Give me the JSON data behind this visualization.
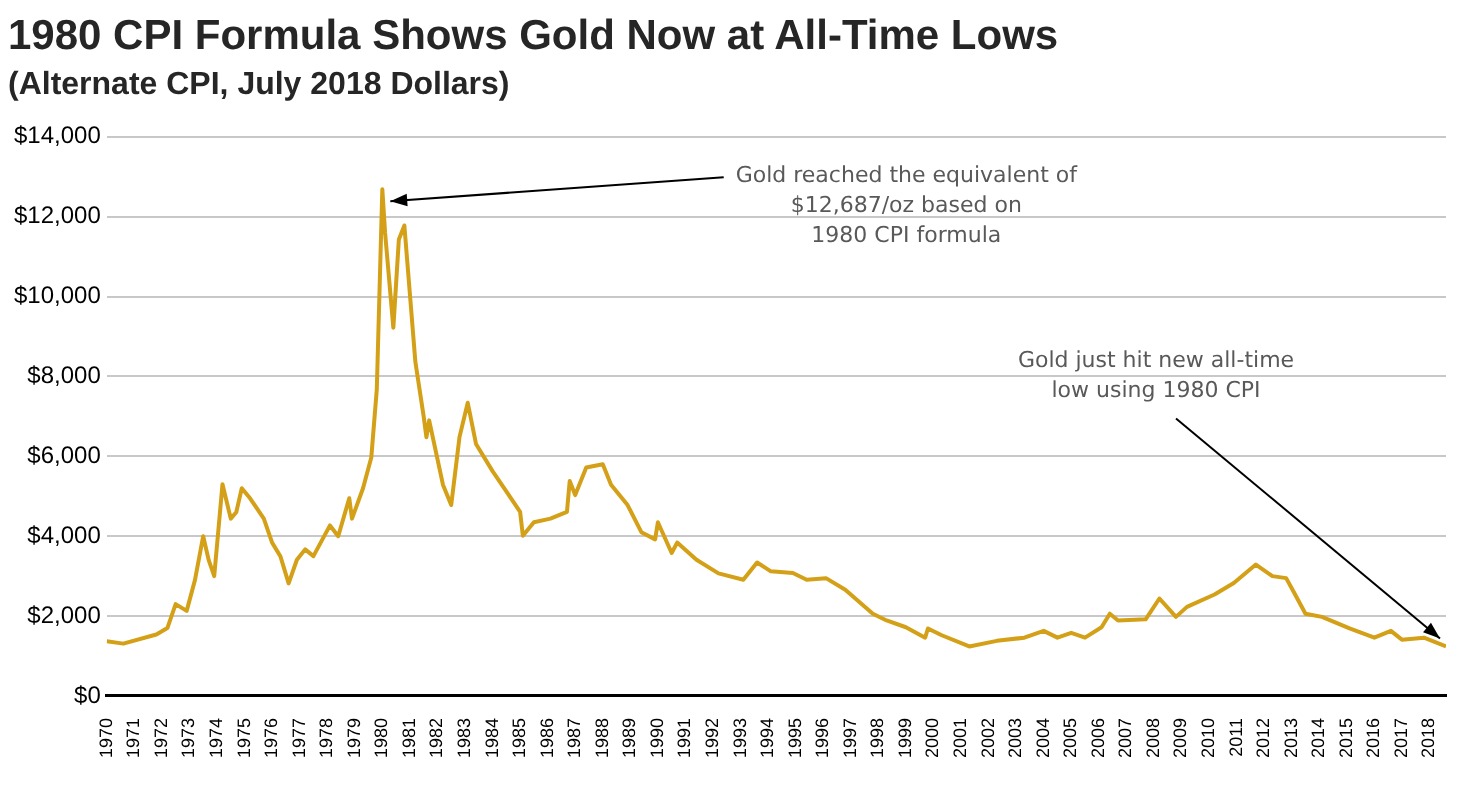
{
  "chart_data": {
    "type": "line",
    "title": "1980 CPI Formula Shows Gold Now at All-Time Lows",
    "subtitle": "(Alternate CPI, July 2018 Dollars)",
    "x": [
      1970.0,
      1970.6,
      1971.8,
      1972.2,
      1972.5,
      1972.9,
      1973.2,
      1973.5,
      1973.7,
      1973.9,
      1974.2,
      1974.5,
      1974.7,
      1974.9,
      1975.2,
      1975.7,
      1976.0,
      1976.3,
      1976.6,
      1976.9,
      1977.2,
      1977.5,
      1978.1,
      1978.4,
      1978.8,
      1978.9,
      1979.3,
      1979.6,
      1979.8,
      1980.0,
      1980.1,
      1980.4,
      1980.6,
      1980.8,
      1981.2,
      1981.5,
      1981.6,
      1981.7,
      1982.2,
      1982.5,
      1982.8,
      1983.1,
      1983.4,
      1984.0,
      1984.5,
      1985.0,
      1985.1,
      1985.5,
      1986.1,
      1986.7,
      1986.8,
      1987.0,
      1987.4,
      1988.0,
      1988.3,
      1988.9,
      1989.4,
      1989.9,
      1990.0,
      1990.5,
      1990.7,
      1991.4,
      1992.2,
      1993.1,
      1993.6,
      1994.1,
      1994.9,
      1995.4,
      1996.1,
      1996.8,
      1997.8,
      1998.3,
      1999.0,
      1999.7,
      1999.8,
      2000.3,
      2001.3,
      2002.3,
      2003.3,
      2004.0,
      2004.5,
      2005.0,
      2005.5,
      2006.1,
      2006.4,
      2006.7,
      2007.7,
      2008.2,
      2008.8,
      2009.2,
      2010.2,
      2010.9,
      2011.7,
      2012.3,
      2012.8,
      2013.1,
      2013.5,
      2014.1,
      2015.1,
      2016.0,
      2016.6,
      2017.0,
      2017.8,
      2018.6
    ],
    "series": [
      {
        "color": "#d4a017",
        "values": [
          1370,
          1310,
          1540,
          1700,
          2300,
          2130,
          2900,
          4000,
          3400,
          3000,
          5300,
          4440,
          4600,
          5200,
          4950,
          4440,
          3840,
          3500,
          2820,
          3410,
          3670,
          3500,
          4270,
          4000,
          4950,
          4440,
          5200,
          5970,
          7680,
          12687,
          11600,
          9220,
          11430,
          11780,
          8360,
          7000,
          6480,
          6900,
          5290,
          4780,
          6480,
          7340,
          6310,
          5630,
          5120,
          4610,
          4010,
          4350,
          4440,
          4610,
          5380,
          5030,
          5720,
          5800,
          5290,
          4780,
          4100,
          3920,
          4350,
          3580,
          3840,
          3410,
          3070,
          2910,
          3340,
          3120,
          3080,
          2910,
          2950,
          2660,
          2060,
          1890,
          1720,
          1460,
          1690,
          1520,
          1240,
          1380,
          1460,
          1630,
          1460,
          1580,
          1460,
          1720,
          2060,
          1890,
          1920,
          2440,
          1980,
          2230,
          2540,
          2830,
          3290,
          3000,
          2950,
          2570,
          2060,
          1980,
          1690,
          1460,
          1630,
          1410,
          1460,
          1240
        ]
      }
    ],
    "xlim": [
      1970,
      2018.6
    ],
    "xticks": [
      1970,
      1971,
      1972,
      1973,
      1974,
      1975,
      1976,
      1977,
      1978,
      1979,
      1980,
      1981,
      1982,
      1983,
      1984,
      1985,
      1986,
      1987,
      1988,
      1989,
      1990,
      1991,
      1992,
      1993,
      1994,
      1995,
      1996,
      1997,
      1998,
      1999,
      2000,
      2001,
      2002,
      2003,
      2004,
      2005,
      2006,
      2007,
      2008,
      2009,
      2010,
      2011,
      2012,
      2013,
      2014,
      2015,
      2016,
      2017,
      2018
    ],
    "ylim": [
      0,
      14000
    ],
    "yticks": [
      {
        "value": 0,
        "label": "$0"
      },
      {
        "value": 2000,
        "label": "$2,000"
      },
      {
        "value": 4000,
        "label": "$4,000"
      },
      {
        "value": 6000,
        "label": "$6,000"
      },
      {
        "value": 8000,
        "label": "$8,000"
      },
      {
        "value": 10000,
        "label": "$10,000"
      },
      {
        "value": 12000,
        "label": "$12,000"
      },
      {
        "value": 14000,
        "label": "$14,000"
      }
    ],
    "grid": "y",
    "legend": false,
    "marker": "none",
    "line_style": "solid",
    "annotations": [
      {
        "text": "Gold reached the equivalent of\n$12,687/oz based on\n1980 CPI formula",
        "x": 1980.0,
        "y": 12687
      },
      {
        "text": "Gold just hit new all-time\nlow using 1980 CPI",
        "x": 2018.6,
        "y": 1240
      }
    ]
  }
}
